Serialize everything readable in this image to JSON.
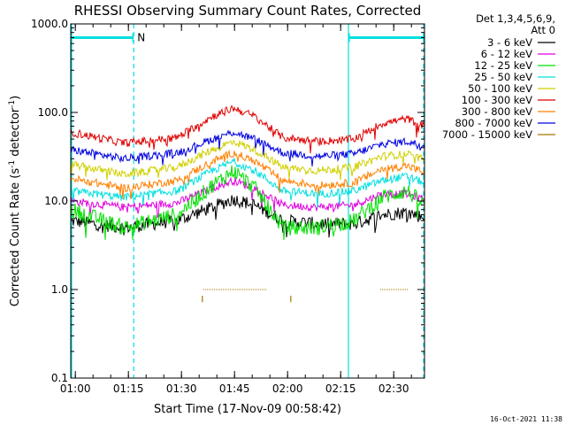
{
  "chart_data": {
    "type": "line",
    "title": "RHESSI Observing Summary Count Rates, Corrected",
    "xlabel": "Start Time (17-Nov-09 00:58:42)",
    "ylabel_prefix": "Corrected Count Rate (s",
    "ylabel_sup1": "-1",
    "ylabel_mid": " detector",
    "ylabel_sup2": "-1",
    "ylabel_suffix": ")",
    "yscale": "log",
    "ylim": [
      0.1,
      1000
    ],
    "xlim_minutes": [
      0,
      100
    ],
    "x_ticks": [
      {
        "label": "01:00",
        "t": 1.3
      },
      {
        "label": "01:15",
        "t": 16.3
      },
      {
        "label": "01:30",
        "t": 31.3
      },
      {
        "label": "01:45",
        "t": 46.3
      },
      {
        "label": "02:00",
        "t": 61.3
      },
      {
        "label": "02:15",
        "t": 76.3
      },
      {
        "label": "02:30",
        "t": 91.3
      }
    ],
    "y_ticks": [
      {
        "label": "1000.0",
        "v": 1000
      },
      {
        "label": "100.0",
        "v": 100
      },
      {
        "label": "10.0",
        "v": 10
      },
      {
        "label": "1.0",
        "v": 1
      },
      {
        "label": "0.1",
        "v": 0.1
      }
    ],
    "legend_header": [
      "Det 1,3,4,5,6,9,",
      "Att 0"
    ],
    "legend_placement": "right",
    "night_marker": "N",
    "night_intervals": [
      [
        0,
        17.8
      ],
      [
        78.5,
        100
      ]
    ],
    "series": [
      {
        "name": "3 - 6 keV",
        "color": "#000000",
        "points": [
          [
            0,
            6
          ],
          [
            15,
            5
          ],
          [
            30,
            6
          ],
          [
            40,
            8.5
          ],
          [
            46,
            10.5
          ],
          [
            52,
            9
          ],
          [
            60,
            6
          ],
          [
            70,
            5.5
          ],
          [
            80,
            5.5
          ],
          [
            88,
            7
          ],
          [
            95,
            7.5
          ],
          [
            100,
            6.5
          ]
        ]
      },
      {
        "name": "6 - 12 keV",
        "color": "#e000e0",
        "points": [
          [
            0,
            10
          ],
          [
            15,
            8.5
          ],
          [
            30,
            9.5
          ],
          [
            40,
            14
          ],
          [
            46,
            17
          ],
          [
            52,
            14
          ],
          [
            60,
            9
          ],
          [
            70,
            8.5
          ],
          [
            80,
            9
          ],
          [
            88,
            12
          ],
          [
            95,
            12
          ],
          [
            100,
            10.5
          ]
        ]
      },
      {
        "name": "12 - 25 keV",
        "color": "#00e000",
        "points": [
          [
            0,
            8
          ],
          [
            15,
            5
          ],
          [
            30,
            7
          ],
          [
            40,
            15
          ],
          [
            46,
            22
          ],
          [
            52,
            14
          ],
          [
            60,
            5
          ],
          [
            70,
            5
          ],
          [
            80,
            6
          ],
          [
            88,
            11
          ],
          [
            95,
            13
          ],
          [
            100,
            9
          ]
        ]
      },
      {
        "name": "25 - 50 keV",
        "color": "#00e0e0",
        "points": [
          [
            0,
            13
          ],
          [
            15,
            11
          ],
          [
            30,
            13
          ],
          [
            40,
            22
          ],
          [
            46,
            28
          ],
          [
            52,
            22
          ],
          [
            60,
            13
          ],
          [
            70,
            12
          ],
          [
            80,
            13
          ],
          [
            88,
            17
          ],
          [
            95,
            19
          ],
          [
            100,
            16
          ]
        ]
      },
      {
        "name": "50 - 100 keV",
        "color": "#d0d000",
        "points": [
          [
            0,
            26
          ],
          [
            15,
            20
          ],
          [
            30,
            24
          ],
          [
            40,
            38
          ],
          [
            46,
            47
          ],
          [
            52,
            38
          ],
          [
            60,
            24
          ],
          [
            70,
            22
          ],
          [
            80,
            24
          ],
          [
            88,
            32
          ],
          [
            95,
            34
          ],
          [
            100,
            29
          ]
        ]
      },
      {
        "name": "100 - 300 keV",
        "color": "#e00000",
        "points": [
          [
            0,
            60
          ],
          [
            15,
            45
          ],
          [
            30,
            52
          ],
          [
            40,
            90
          ],
          [
            46,
            112
          ],
          [
            52,
            90
          ],
          [
            60,
            52
          ],
          [
            70,
            47
          ],
          [
            80,
            50
          ],
          [
            88,
            75
          ],
          [
            95,
            85
          ],
          [
            100,
            70
          ]
        ]
      },
      {
        "name": "300 - 800 keV",
        "color": "#ff8000",
        "points": [
          [
            0,
            18
          ],
          [
            15,
            14
          ],
          [
            30,
            17
          ],
          [
            40,
            28
          ],
          [
            46,
            35
          ],
          [
            52,
            28
          ],
          [
            60,
            17
          ],
          [
            70,
            15
          ],
          [
            80,
            16
          ],
          [
            88,
            23
          ],
          [
            95,
            25
          ],
          [
            100,
            21
          ]
        ]
      },
      {
        "name": "800 - 7000 keV",
        "color": "#0000e0",
        "points": [
          [
            0,
            38
          ],
          [
            15,
            30
          ],
          [
            30,
            35
          ],
          [
            40,
            50
          ],
          [
            46,
            60
          ],
          [
            52,
            50
          ],
          [
            60,
            35
          ],
          [
            70,
            32
          ],
          [
            80,
            34
          ],
          [
            88,
            44
          ],
          [
            95,
            47
          ],
          [
            100,
            42
          ]
        ]
      },
      {
        "name": "7000 - 15000 keV",
        "color": "#a07800",
        "points": [
          [
            37.5,
            1.0
          ],
          [
            52.5,
            1.0
          ]
        ]
      }
    ],
    "stamp": "16-Oct-2021 11:38"
  }
}
